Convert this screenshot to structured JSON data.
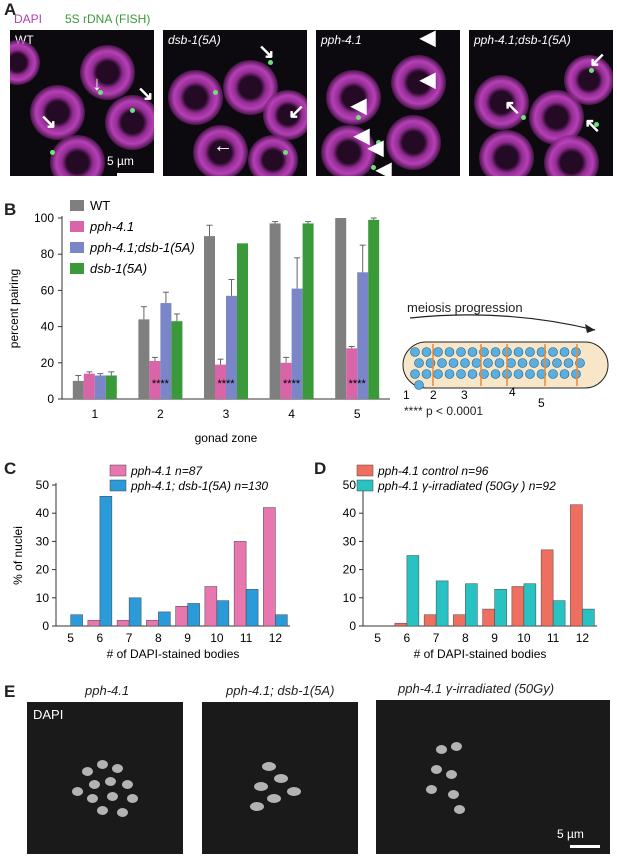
{
  "panelA": {
    "letter": "A",
    "legend": {
      "dapi": "DAPI",
      "fish": "5S rDNA (FISH)"
    },
    "images": [
      "WT",
      "dsb-1(5A)",
      "pph-4.1",
      "pph-4.1;dsb-1(5A)"
    ],
    "scalebar": "5 µm"
  },
  "panelB": {
    "letter": "B",
    "significance": "**** p < 0.0001",
    "stars": "****",
    "diagram": {
      "title": "meiosis progression",
      "zones": [
        "1",
        "2",
        "3",
        "4",
        "5"
      ]
    }
  },
  "panelC": {
    "letter": "C"
  },
  "panelD": {
    "letter": "D"
  },
  "panelE": {
    "letter": "E",
    "titles": [
      "pph-4.1",
      "pph-4.1; dsb-1(5A)",
      "pph-4.1 γ-irradiated (50Gy)"
    ],
    "dapi": "DAPI",
    "scalebar": "5 µm"
  },
  "chart_data": [
    {
      "type": "bar",
      "panel": "B",
      "ylabel": "percent pairing",
      "xlabel": "gonad zone",
      "categories": [
        "1",
        "2",
        "3",
        "4",
        "5"
      ],
      "ylim": [
        0,
        100
      ],
      "yticks": [
        0,
        20,
        40,
        60,
        80,
        100
      ],
      "series": [
        {
          "name": "WT",
          "color": "#7f7f7f",
          "values": [
            10,
            44,
            90,
            97,
            100
          ],
          "errors": [
            3,
            7,
            6,
            1,
            0
          ]
        },
        {
          "name": "pph-4.1",
          "color": "#d965a8",
          "values": [
            14,
            21,
            19,
            20,
            28
          ],
          "errors": [
            1,
            2,
            3,
            3,
            1
          ]
        },
        {
          "name": "pph-4.1;dsb-1(5A)",
          "color": "#7b86c9",
          "values": [
            13,
            53,
            57,
            61,
            70
          ],
          "errors": [
            1,
            6,
            9,
            17,
            15
          ]
        },
        {
          "name": "dsb-1(5A)",
          "color": "#3a9a3a",
          "values": [
            13,
            43,
            86,
            97,
            99
          ],
          "errors": [
            2,
            4,
            0,
            1,
            1
          ]
        }
      ]
    },
    {
      "type": "bar",
      "panel": "C",
      "ylabel": "% of nuclei",
      "xlabel": "# of DAPI-stained bodies",
      "categories": [
        "5",
        "6",
        "7",
        "8",
        "9",
        "10",
        "11",
        "12"
      ],
      "ylim": [
        0,
        50
      ],
      "yticks": [
        0,
        10,
        20,
        30,
        40,
        50
      ],
      "series": [
        {
          "name": "pph-4.1 n=87",
          "color": "#e877b0",
          "values": [
            0,
            2,
            2,
            2,
            7,
            14,
            30,
            42
          ]
        },
        {
          "name": "pph-4.1; dsb-1(5A) n=130",
          "color": "#2b9ad8",
          "values": [
            4,
            46,
            10,
            5,
            8,
            9,
            13,
            4
          ]
        }
      ]
    },
    {
      "type": "bar",
      "panel": "D",
      "xlabel": "# of DAPI-stained bodies",
      "categories": [
        "5",
        "6",
        "7",
        "8",
        "9",
        "10",
        "11",
        "12"
      ],
      "ylim": [
        0,
        50
      ],
      "yticks": [
        0,
        10,
        20,
        30,
        40,
        50
      ],
      "series": [
        {
          "name": "pph-4.1 control n=96",
          "color": "#ee6f5f",
          "values": [
            0,
            1,
            4,
            4,
            6,
            14,
            27,
            43
          ]
        },
        {
          "name": "pph-4.1 γ-irradiated (50Gy ) n=92",
          "color": "#28c2c2",
          "values": [
            0,
            25,
            16,
            15,
            13,
            15,
            9,
            6
          ]
        }
      ]
    }
  ]
}
